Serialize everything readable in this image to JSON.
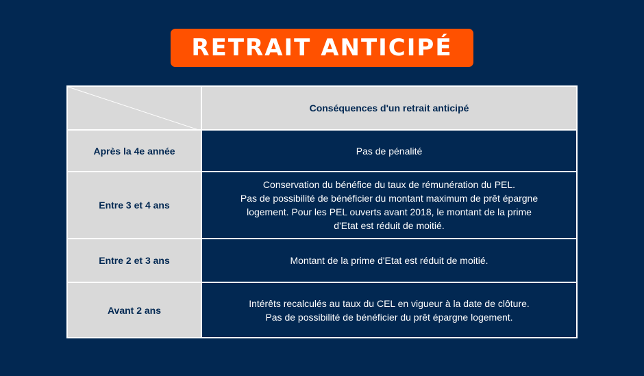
{
  "title": "RETRAIT ANTICIPÉ",
  "colors": {
    "background": "#022852",
    "title_bg": "#FF5100",
    "label_bg": "#D9D9D9"
  },
  "table": {
    "header": "Conséquences d'un retrait anticipé",
    "rows": [
      {
        "label": "Après la 4e année",
        "lines": [
          "Pas de pénalité"
        ]
      },
      {
        "label": "Entre 3 et 4 ans",
        "lines": [
          "Conservation du bénéfice du taux de rémunération du PEL.",
          "Pas de possibilité de bénéficier du montant maximum de prêt épargne",
          "logement. Pour les PEL ouverts avant 2018, le montant de la prime",
          "d'Etat est réduit de moitié."
        ]
      },
      {
        "label": "Entre 2 et 3 ans",
        "lines": [
          "Montant de la prime d'Etat est réduit de moitié."
        ]
      },
      {
        "label": "Avant 2 ans",
        "lines": [
          "Intérêts recalculés au taux du CEL en vigueur à la date de clôture.",
          "Pas de possibilité de bénéficier du prêt épargne logement."
        ]
      }
    ]
  }
}
